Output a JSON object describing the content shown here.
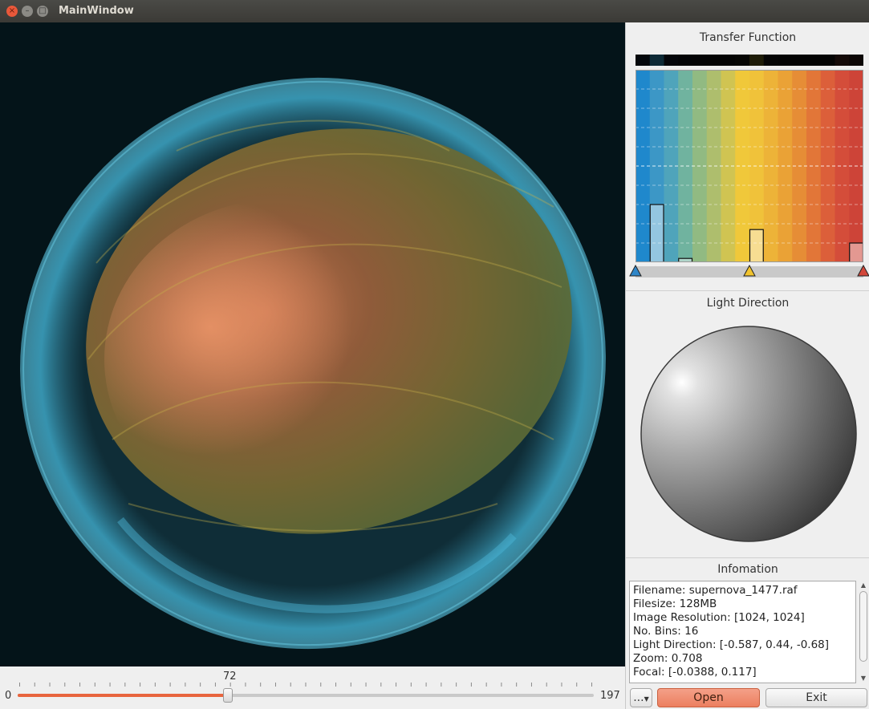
{
  "window": {
    "title": "MainWindow"
  },
  "slider": {
    "value": 72,
    "min": 0,
    "max": 197,
    "value_label": "72",
    "min_label": "0",
    "max_label": "197"
  },
  "transfer_function": {
    "title": "Transfer Function",
    "colors": [
      "#1f88cc",
      "#3c97c6",
      "#4fa4bb",
      "#70b39f",
      "#91ba82",
      "#aebe6d",
      "#d0c452",
      "#f0c83a",
      "#f0c23a",
      "#edb338",
      "#eaa236",
      "#e68d36",
      "#e27638",
      "#dc5f3a",
      "#d44d3a",
      "#cd4438"
    ],
    "opacities": [
      0,
      0.3,
      0,
      0.02,
      0,
      0,
      0,
      0,
      0.17,
      0,
      0,
      0,
      0,
      0,
      0,
      0.1
    ],
    "top_strip": [
      "#04080c",
      "#0e2a36",
      "#04060a",
      "#030406",
      "#040405",
      "#040404",
      "#040404",
      "#060604",
      "#1e1c08",
      "#050505",
      "#040404",
      "#040404",
      "#040404",
      "#040404",
      "#140a08",
      "#0c0605"
    ],
    "markers": [
      {
        "name": "blue",
        "color": "#2f86c8",
        "position": 0.0
      },
      {
        "name": "yellow",
        "color": "#f2c42e",
        "position": 0.5
      },
      {
        "name": "red",
        "color": "#d2473a",
        "position": 1.0
      }
    ]
  },
  "light_direction": {
    "title": "Light Direction"
  },
  "information": {
    "title": "Infomation",
    "lines": [
      "Filename: supernova_1477.raf",
      "Filesize: 128MB",
      "Image Resolution: [1024, 1024]",
      "No. Bins: 16",
      "Light Direction: [-0.587, 0.44, -0.68]",
      "Zoom: 0.708",
      "Focal: [-0.0388, 0.117]"
    ]
  },
  "buttons": {
    "more": "...",
    "open": "Open",
    "exit": "Exit"
  },
  "icons": {
    "close": "close-icon",
    "minimize": "minimize-icon",
    "maximize": "maximize-icon",
    "dropdown": "chevron-down-icon"
  }
}
